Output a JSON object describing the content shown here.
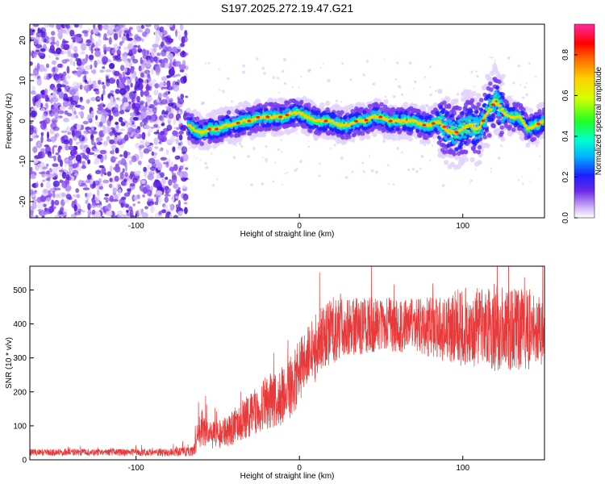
{
  "title": "S197.2025.272.19.47.G21",
  "chart_data": [
    {
      "type": "heatmap",
      "xlabel": "Height of straight line (km)",
      "ylabel": "Frequency (Hz)",
      "xlim": [
        -165,
        150
      ],
      "ylim": [
        -24,
        24
      ],
      "xticks": [
        -100,
        0,
        100
      ],
      "yticks": [
        -20,
        -10,
        0,
        10,
        20
      ],
      "colorbar": {
        "label": "Normalized spectral amplitude",
        "range": [
          0.0,
          0.95
        ],
        "ticks": [
          "0.0",
          "0.2",
          "0.4",
          "0.6",
          "0.8"
        ],
        "tick_values": [
          0.0,
          0.2,
          0.4,
          0.6,
          0.8
        ]
      },
      "noise_region_x": [
        -165,
        -69
      ],
      "signal_track": {
        "x": [
          -68,
          -65,
          -60,
          -55,
          -50,
          -45,
          -40,
          -35,
          -30,
          -25,
          -20,
          -15,
          -10,
          -5,
          0,
          5,
          10,
          15,
          20,
          25,
          30,
          35,
          40,
          45,
          50,
          55,
          60,
          65,
          70,
          75,
          80,
          85,
          90,
          95,
          100,
          105,
          110,
          115,
          120,
          125,
          130,
          135,
          140,
          145,
          150
        ],
        "y": [
          -1,
          -2,
          -3,
          -2,
          -2,
          -1,
          -1,
          0,
          0,
          1,
          1,
          1,
          1,
          2,
          2,
          1,
          0,
          0,
          0,
          -1,
          -1,
          0,
          0,
          1,
          1,
          0,
          0,
          0,
          0,
          -1,
          -1,
          0,
          -2,
          -3,
          -2,
          -1,
          -2,
          2,
          5,
          2,
          1,
          1,
          -2,
          -1,
          0
        ]
      }
    },
    {
      "type": "line",
      "xlabel": "Height of straight line (km)",
      "ylabel": "SNR (10 * v/v)",
      "xlim": [
        -165,
        150
      ],
      "ylim": [
        0,
        570
      ],
      "xticks": [
        -100,
        0,
        100
      ],
      "yticks": [
        0,
        100,
        200,
        300,
        400,
        500
      ],
      "color": "#e83a3a",
      "envelope": {
        "x": [
          -165,
          -140,
          -120,
          -100,
          -80,
          -65,
          -60,
          -55,
          -50,
          -45,
          -40,
          -35,
          -30,
          -25,
          -20,
          -15,
          -10,
          -5,
          0,
          5,
          10,
          15,
          20,
          25,
          30,
          40,
          50,
          60,
          70,
          80,
          90,
          100,
          110,
          120,
          130,
          140,
          150
        ],
        "mean": [
          22,
          22,
          22,
          22,
          22,
          25,
          100,
          70,
          75,
          80,
          100,
          120,
          130,
          150,
          170,
          175,
          190,
          220,
          260,
          300,
          330,
          360,
          380,
          390,
          395,
          395,
          400,
          395,
          400,
          390,
          385,
          390,
          390,
          390,
          385,
          385,
          380
        ],
        "spread": [
          10,
          10,
          10,
          10,
          12,
          15,
          60,
          40,
          40,
          45,
          55,
          60,
          65,
          70,
          80,
          85,
          90,
          95,
          95,
          95,
          100,
          100,
          100,
          100,
          90,
          85,
          80,
          80,
          80,
          90,
          100,
          120,
          120,
          130,
          120,
          120,
          100
        ]
      }
    }
  ]
}
